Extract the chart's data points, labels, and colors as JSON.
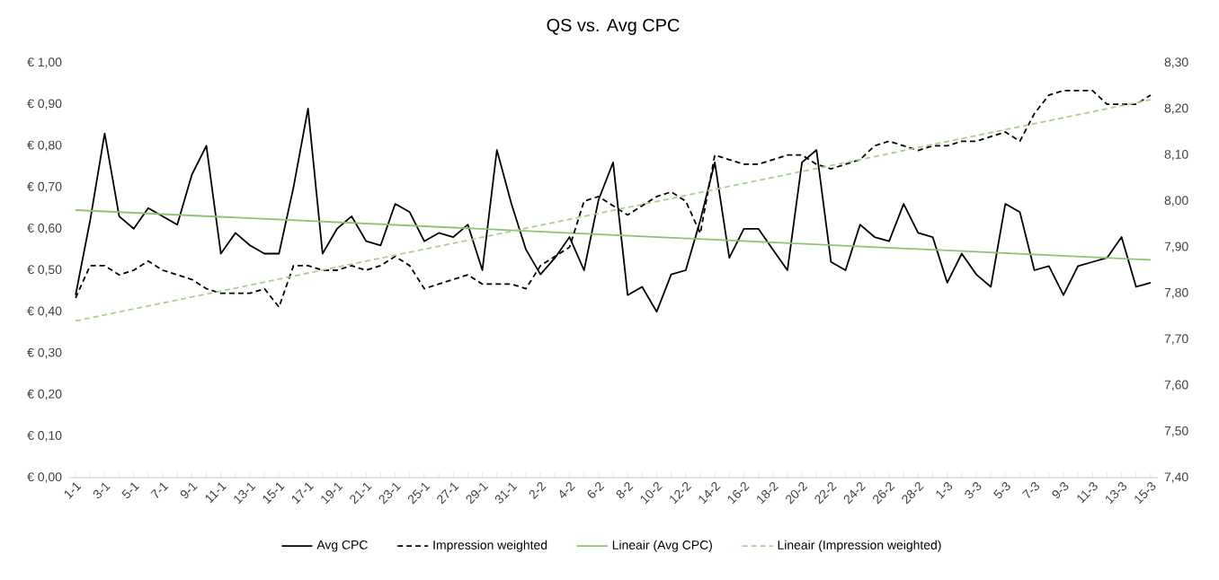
{
  "chart_data": {
    "type": "line",
    "title": "QS vs. Avg CPC",
    "categories": [
      "1-1",
      null,
      "3-1",
      null,
      "5-1",
      null,
      "7-1",
      null,
      "9-1",
      null,
      "11-1",
      null,
      "13-1",
      null,
      "15-1",
      null,
      "17-1",
      null,
      "19-1",
      null,
      "21-1",
      null,
      "23-1",
      null,
      "25-1",
      null,
      "27-1",
      null,
      "29-1",
      null,
      "31-1",
      null,
      "2-2",
      null,
      "4-2",
      null,
      "6-2",
      null,
      "8-2",
      null,
      "10-2",
      null,
      "12-2",
      null,
      "14-2",
      null,
      "16-2",
      null,
      "18-2",
      null,
      "20-2",
      null,
      "22-2",
      null,
      "24-2",
      null,
      "26-2",
      null,
      "28-2",
      null,
      "1-3",
      null,
      "3-3",
      null,
      "5-3",
      null,
      "7-3",
      null,
      "9-3",
      null,
      "11-3",
      null,
      "13-3",
      null,
      "15-3"
    ],
    "series": [
      {
        "name": "Avg CPC",
        "color": "#000000",
        "line_style": "solid",
        "axis": "y",
        "values": [
          0.44,
          0.62,
          0.83,
          0.63,
          0.6,
          0.65,
          0.63,
          0.61,
          0.73,
          0.8,
          0.54,
          0.59,
          0.56,
          0.54,
          0.54,
          0.7,
          0.89,
          0.54,
          0.6,
          0.63,
          0.57,
          0.56,
          0.66,
          0.64,
          0.57,
          0.59,
          0.58,
          0.61,
          0.5,
          0.79,
          0.66,
          0.55,
          0.49,
          0.53,
          0.58,
          0.5,
          0.67,
          0.76,
          0.44,
          0.46,
          0.4,
          0.49,
          0.5,
          0.62,
          0.76,
          0.53,
          0.6,
          0.6,
          0.55,
          0.5,
          0.76,
          0.79,
          0.52,
          0.5,
          0.61,
          0.58,
          0.57,
          0.66,
          0.59,
          0.58,
          0.47,
          0.54,
          0.49,
          0.46,
          0.66,
          0.64,
          0.5,
          0.51,
          0.44,
          0.51,
          0.52,
          0.53,
          0.58,
          0.46,
          0.47
        ]
      },
      {
        "name": "Impression weighted",
        "color": "#000000",
        "line_style": "dashed",
        "axis": "y2",
        "values": [
          7.79,
          7.86,
          7.86,
          7.84,
          7.85,
          7.87,
          7.85,
          7.84,
          7.83,
          7.81,
          7.8,
          7.8,
          7.8,
          7.81,
          7.77,
          7.86,
          7.86,
          7.85,
          7.85,
          7.86,
          7.85,
          7.86,
          7.88,
          7.86,
          7.81,
          7.82,
          7.83,
          7.84,
          7.82,
          7.82,
          7.82,
          7.81,
          7.86,
          7.88,
          7.9,
          8.0,
          8.01,
          7.99,
          7.97,
          7.99,
          8.01,
          8.02,
          8.0,
          7.93,
          8.1,
          8.09,
          8.08,
          8.08,
          8.09,
          8.1,
          8.1,
          8.08,
          8.07,
          8.08,
          8.09,
          8.12,
          8.13,
          8.12,
          8.11,
          8.12,
          8.12,
          8.13,
          8.13,
          8.14,
          8.15,
          8.13,
          8.19,
          8.23,
          8.24,
          8.24,
          8.24,
          8.21,
          8.21,
          8.21,
          8.23
        ]
      },
      {
        "name": "Lineair (Avg CPC)",
        "type": "line",
        "color": "#8fc274",
        "line_style": "solid",
        "axis": "y",
        "x": [
          "1-1",
          "15-3"
        ],
        "values": [
          0.645,
          0.525
        ]
      },
      {
        "name": "Lineair (Impression weighted)",
        "type": "line",
        "color": "#a8cf8e",
        "line_style": "dashed",
        "axis": "y2",
        "x": [
          "1-1",
          "15-3"
        ],
        "values": [
          7.74,
          8.22
        ]
      }
    ],
    "ylim": [
      0,
      1
    ],
    "yticks": [
      {
        "value": 0,
        "label": "€ 0,00"
      },
      {
        "value": 0.1,
        "label": "€ 0,10"
      },
      {
        "value": 0.2,
        "label": "€ 0,20"
      },
      {
        "value": 0.3,
        "label": "€ 0,30"
      },
      {
        "value": 0.4,
        "label": "€ 0,40"
      },
      {
        "value": 0.5,
        "label": "€ 0,50"
      },
      {
        "value": 0.6,
        "label": "€ 0,60"
      },
      {
        "value": 0.7,
        "label": "€ 0,70"
      },
      {
        "value": 0.8,
        "label": "€ 0,80"
      },
      {
        "value": 0.9,
        "label": "€ 0,90"
      },
      {
        "value": 1,
        "label": "€ 1,00"
      }
    ],
    "y2lim": [
      7.4,
      8.3
    ],
    "y2ticks": [
      {
        "value": 7.4,
        "label": "7,40"
      },
      {
        "value": 7.5,
        "label": "7,50"
      },
      {
        "value": 7.6,
        "label": "7,60"
      },
      {
        "value": 7.7,
        "label": "7,70"
      },
      {
        "value": 7.8,
        "label": "7,80"
      },
      {
        "value": 7.9,
        "label": "7,90"
      },
      {
        "value": 8.0,
        "label": "8,00"
      },
      {
        "value": 8.1,
        "label": "8,10"
      },
      {
        "value": 8.2,
        "label": "8,20"
      },
      {
        "value": 8.3,
        "label": "8,30"
      }
    ],
    "marker": "none",
    "legend": "bottom"
  }
}
